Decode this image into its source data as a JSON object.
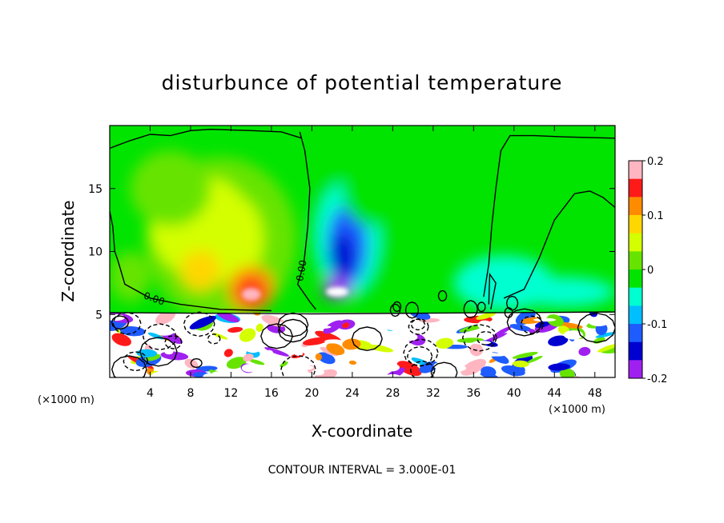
{
  "chart_data": {
    "type": "heatmap",
    "title": "disturbunce of potential temperature",
    "xlabel": "X-coordinate",
    "ylabel": "Z-coordinate",
    "x_unit": "(×1000 m)",
    "x_unit_right": "(×1000 m)",
    "x_ticks": [
      4,
      8,
      12,
      16,
      20,
      24,
      28,
      32,
      36,
      40,
      44,
      48
    ],
    "y_ticks": [
      5,
      10,
      15
    ],
    "xlim": [
      0,
      50
    ],
    "ylim": [
      0,
      20
    ],
    "colorbar": {
      "range": [
        -0.2,
        0.2
      ],
      "ticks": [
        0.2,
        0.1,
        0,
        -0.1,
        -0.2
      ],
      "tick_labels": [
        "0.2",
        "0.1",
        "0",
        "-0.1",
        "-0.2"
      ],
      "colors": [
        "#ffb6c1",
        "#ff1a1a",
        "#ff8c00",
        "#ffd700",
        "#d4ff00",
        "#66e400",
        "#00e400",
        "#00ffd0",
        "#00bfff",
        "#1e5cff",
        "#0000d0",
        "#a020f0"
      ]
    },
    "contour_labels": [
      {
        "text": "0.00",
        "x": 3.3,
        "z": 6.3
      },
      {
        "text": "0.00",
        "x": 19.1,
        "z": 7.6
      }
    ],
    "features": [
      {
        "kind": "warm-core",
        "x": 14,
        "z": 7,
        "value": 0.14
      },
      {
        "kind": "warm-band",
        "x": 11,
        "z": 11,
        "value": 0.05
      },
      {
        "kind": "cold-core",
        "x": 23.5,
        "z": 10.5,
        "value": -0.12
      },
      {
        "kind": "cold-band",
        "x": 39,
        "z": 7.5,
        "value": -0.06
      }
    ],
    "footnote": "CONTOUR INTERVAL = 3.000E-01"
  }
}
